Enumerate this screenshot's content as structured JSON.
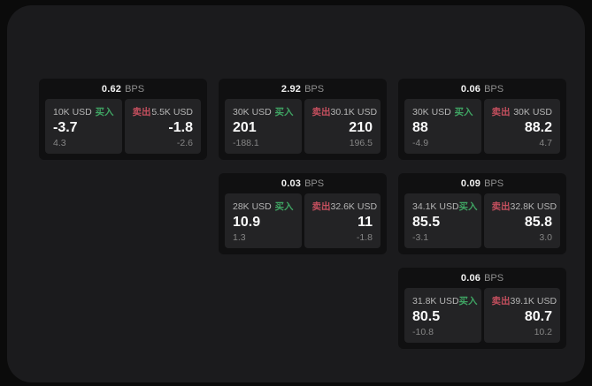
{
  "labels": {
    "buy": "买入",
    "sell": "卖出",
    "bps_unit": "BPS"
  },
  "colors": {
    "background": "#0b0b0b",
    "panel_bg": "#1b1b1d",
    "card_bg": "#101011",
    "tile_bg": "#232325",
    "buy_green": "#3fa463",
    "sell_red": "#c44f5e",
    "value_white": "#fafafa",
    "muted_gray": "#868686"
  },
  "cards": [
    {
      "bps": "0.62",
      "buy_amount": "10K USD",
      "buy_value": "-3.7",
      "buy_delta": "4.3",
      "sell_amount": "5.5K USD",
      "sell_value": "-1.8",
      "sell_delta": "-2.6"
    },
    {
      "bps": "2.92",
      "buy_amount": "30K USD",
      "buy_value": "201",
      "buy_delta": "-188.1",
      "sell_amount": "30.1K USD",
      "sell_value": "210",
      "sell_delta": "196.5"
    },
    {
      "bps": "0.06",
      "buy_amount": "30K USD",
      "buy_value": "88",
      "buy_delta": "-4.9",
      "sell_amount": "30K USD",
      "sell_value": "88.2",
      "sell_delta": "4.7"
    },
    {
      "bps": "0.03",
      "buy_amount": "28K USD",
      "buy_value": "10.9",
      "buy_delta": "1.3",
      "sell_amount": "32.6K USD",
      "sell_value": "11",
      "sell_delta": "-1.8"
    },
    {
      "bps": "0.09",
      "buy_amount": "34.1K USD",
      "buy_value": "85.5",
      "buy_delta": "-3.1",
      "sell_amount": "32.8K USD",
      "sell_value": "85.8",
      "sell_delta": "3.0"
    },
    {
      "bps": "0.06",
      "buy_amount": "31.8K USD",
      "buy_value": "80.5",
      "buy_delta": "-10.8",
      "sell_amount": "39.1K USD",
      "sell_value": "80.7",
      "sell_delta": "10.2"
    }
  ]
}
